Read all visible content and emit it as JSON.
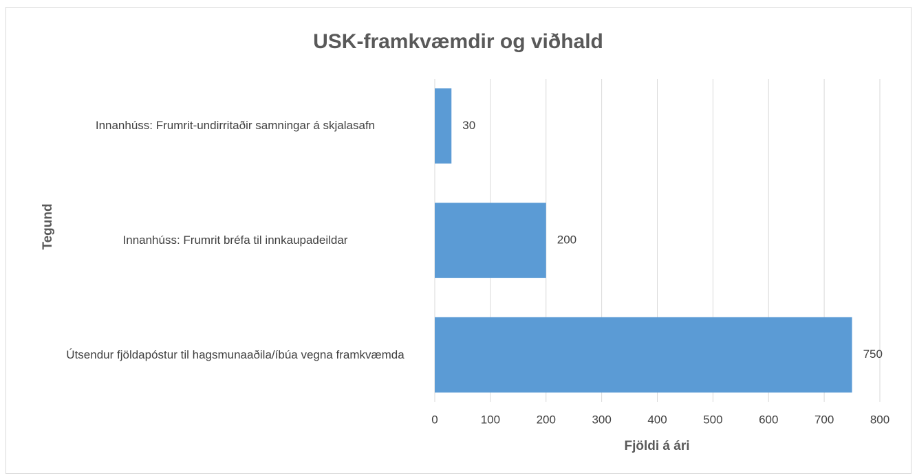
{
  "chart_data": {
    "type": "bar",
    "orientation": "horizontal",
    "title": "USK-framkvæmdir og viðhald",
    "x_label": "Fjöldi á ári",
    "y_label": "Tegund",
    "categories": [
      "Innanhúss: Frumrit-undirritaðir samningar á skjalasafn",
      "Innanhúss: Frumrit bréfa til innkaupadeildar",
      "Útsendur fjöldapóstur til hagsmunaaðila/íbúa vegna framkvæmda"
    ],
    "values": [
      30,
      200,
      750
    ],
    "color": "#5b9bd5",
    "xlim": [
      0,
      800
    ],
    "xticks": [
      0,
      100,
      200,
      300,
      400,
      500,
      600,
      700,
      800
    ],
    "grid": true
  }
}
